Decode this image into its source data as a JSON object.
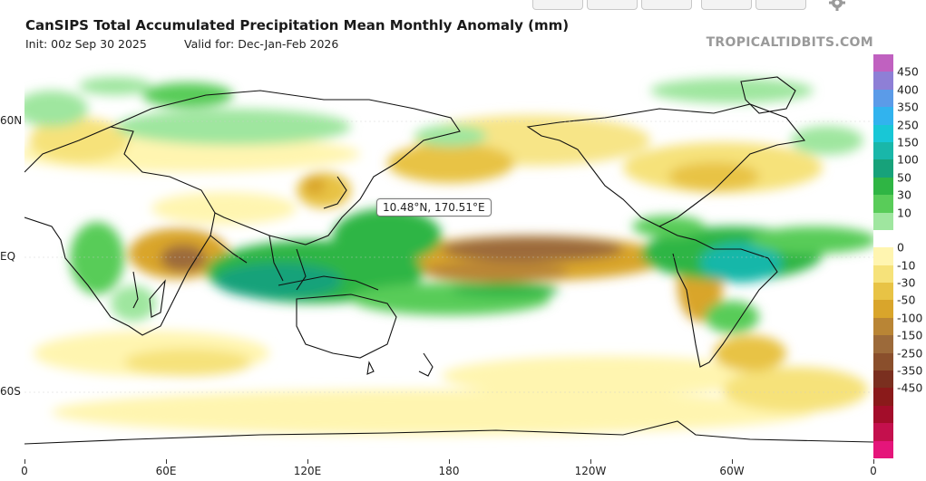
{
  "header": {
    "title": "CanSIPS Total Accumulated Precipitation Mean Monthly Anomaly (mm)",
    "init": "Init: 00z Sep 30 2025",
    "valid": "Valid for: Dec-Jan-Feb 2026",
    "brand": "TROPICALTIDBITS.COM"
  },
  "map": {
    "y_axis_labels": [
      "60N",
      "EQ",
      "60S"
    ],
    "x_axis_labels": [
      "0",
      "60E",
      "120E",
      "180",
      "120W",
      "60W",
      "0"
    ],
    "tooltip": "10.48°N, 170.51°E"
  },
  "colorbar": {
    "labels": [
      "450",
      "400",
      "350",
      "250",
      "150",
      "100",
      "50",
      "30",
      "10",
      "0",
      "-10",
      "-30",
      "-50",
      "-100",
      "-150",
      "-250",
      "-350",
      "-450"
    ],
    "colors": [
      "#c061c0",
      "#8e7fd6",
      "#5b9be8",
      "#31b3ee",
      "#18c7d6",
      "#19b7a9",
      "#17a27a",
      "#2fb544",
      "#59cc59",
      "#9fe69f",
      "#ffffff",
      "#fff5b0",
      "#f6e27a",
      "#e8c345",
      "#d9a52b",
      "#b98535",
      "#9c6a3a",
      "#8a4f2c",
      "#7a2f1f",
      "#8a1a1a",
      "#a30d2a",
      "#c4104d",
      "#e5157a"
    ]
  },
  "toolbar": {
    "buttons": [
      "zoom-button",
      "pan-button",
      "reset-button",
      "download-button",
      "share-button",
      "gear"
    ]
  }
}
